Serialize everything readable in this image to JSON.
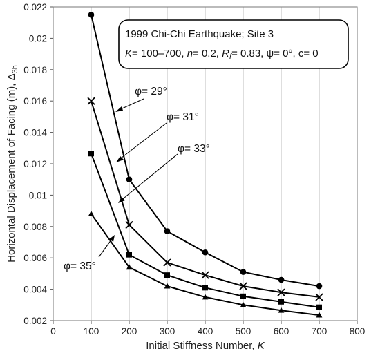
{
  "chart_data": {
    "type": "line",
    "title": "",
    "xlabel": "Initial Stiffness Number, ",
    "xlabel_italic": "K",
    "ylabel": "Horizontal Displacement of Facing (m), Δ",
    "ylabel_sub": "3h",
    "xlim": [
      0,
      800
    ],
    "ylim": [
      0.002,
      0.022
    ],
    "x_ticks": [
      "0",
      "100",
      "200",
      "300",
      "400",
      "500",
      "600",
      "700",
      "800"
    ],
    "y_ticks": [
      "0.002",
      "0.004",
      "0.006",
      "0.008",
      "0.01",
      "0.012",
      "0.014",
      "0.016",
      "0.018",
      "0.02",
      "0.022"
    ],
    "grid": "vertical",
    "info_box": {
      "line1": "1999 Chi-Chi Earthquake; Site 3",
      "line2_parts": [
        "K",
        "= 100–700, ",
        "n",
        "= 0.2, ",
        "R",
        "f",
        "= 0.83, ψ= 0°, c= 0"
      ]
    },
    "series": [
      {
        "name": "φ= 29°",
        "marker": "circle",
        "x": [
          100,
          200,
          300,
          400,
          500,
          600,
          700
        ],
        "y": [
          0.0215,
          0.011,
          0.0077,
          0.00635,
          0.0051,
          0.0046,
          0.0042
        ]
      },
      {
        "name": "φ= 31°",
        "marker": "x",
        "x": [
          100,
          200,
          300,
          400,
          500,
          600,
          700
        ],
        "y": [
          0.016,
          0.0081,
          0.0057,
          0.0049,
          0.0042,
          0.0038,
          0.0035
        ]
      },
      {
        "name": "φ= 33°",
        "marker": "square",
        "x": [
          100,
          200,
          300,
          400,
          500,
          600,
          700
        ],
        "y": [
          0.01265,
          0.0062,
          0.0049,
          0.0041,
          0.00355,
          0.0032,
          0.00285
        ]
      },
      {
        "name": "φ= 35°",
        "marker": "triangle",
        "x": [
          100,
          200,
          300,
          400,
          500,
          600,
          700
        ],
        "y": [
          0.0088,
          0.0054,
          0.0042,
          0.0035,
          0.003,
          0.00265,
          0.00235
        ]
      }
    ]
  }
}
